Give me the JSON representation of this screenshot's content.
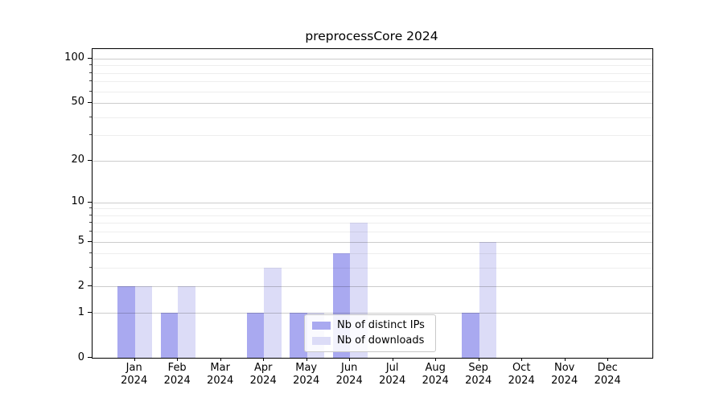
{
  "title": "preprocessCore 2024",
  "chart_data": {
    "type": "bar",
    "title": "preprocessCore 2024",
    "categories": [
      "Jan",
      "Feb",
      "Mar",
      "Apr",
      "May",
      "Jun",
      "Jul",
      "Aug",
      "Sep",
      "Oct",
      "Nov",
      "Dec"
    ],
    "x_year_line": "2024",
    "series": [
      {
        "name": "Nb of distinct IPs",
        "color": "#a9a9f0",
        "values": [
          2,
          1,
          0,
          1,
          1,
          4,
          0,
          0,
          1,
          0,
          0,
          0
        ]
      },
      {
        "name": "Nb of downloads",
        "color": "#dcdcf7",
        "values": [
          2,
          2,
          0,
          3,
          1,
          7,
          0,
          0,
          5,
          0,
          0,
          0
        ]
      }
    ],
    "y_scale": "log10(1+x)",
    "y_major_ticks": [
      0,
      1,
      2,
      5,
      10,
      20,
      50,
      100
    ],
    "y_minor_ticks": [
      3,
      4,
      6,
      7,
      8,
      9,
      30,
      40,
      60,
      70,
      80,
      90
    ],
    "ylim": [
      0,
      115
    ],
    "grid": true,
    "legend_position": "lower center"
  }
}
